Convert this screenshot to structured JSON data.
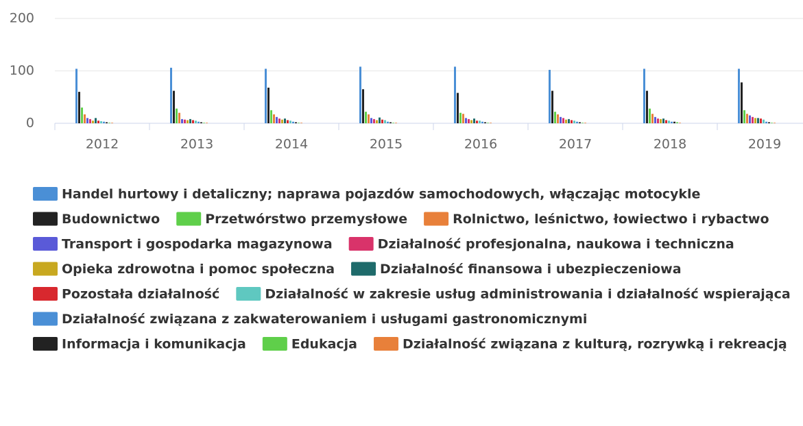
{
  "chart_data": {
    "type": "bar",
    "categories": [
      "2012",
      "2013",
      "2014",
      "2015",
      "2016",
      "2017",
      "2018",
      "2019"
    ],
    "ylim": [
      0,
      200
    ],
    "yticks": [
      0,
      100,
      200
    ],
    "grid": true,
    "legend": "bottom",
    "series": [
      {
        "name": "Handel hurtowy i detaliczny; naprawa pojazdów samochodowych, włączając motocykle",
        "color": "#4a8fd6",
        "values": [
          104,
          106,
          104,
          108,
          108,
          102,
          104,
          104
        ]
      },
      {
        "name": "Budownictwo",
        "color": "#222222",
        "values": [
          60,
          62,
          68,
          65,
          58,
          62,
          62,
          78
        ]
      },
      {
        "name": "Przetwórstwo przemysłowe",
        "color": "#5fcf4a",
        "values": [
          30,
          28,
          25,
          22,
          20,
          22,
          28,
          25
        ]
      },
      {
        "name": "Rolnictwo, leśnictwo, łowiectwo i rybactwo",
        "color": "#e8803a",
        "values": [
          17,
          20,
          17,
          17,
          18,
          17,
          18,
          18
        ]
      },
      {
        "name": "Transport i gospodarka magazynowa",
        "color": "#5a5ad8",
        "values": [
          10,
          8,
          12,
          10,
          10,
          12,
          12,
          15
        ]
      },
      {
        "name": "Działalność profesjonalna, naukowa i techniczna",
        "color": "#d9336a",
        "values": [
          8,
          7,
          9,
          8,
          8,
          10,
          9,
          12
        ]
      },
      {
        "name": "Opieka zdrowotna i pomoc społeczna",
        "color": "#c8a820",
        "values": [
          5,
          6,
          7,
          6,
          6,
          7,
          8,
          10
        ]
      },
      {
        "name": "Działalność finansowa i ubezpieczeniowa",
        "color": "#1f6b6b",
        "values": [
          10,
          8,
          9,
          11,
          9,
          8,
          9,
          10
        ]
      },
      {
        "name": "Pozostała działalność",
        "color": "#d8282e",
        "values": [
          5,
          6,
          6,
          7,
          5,
          6,
          6,
          9
        ]
      },
      {
        "name": "Działalność w zakresie usług administrowania i działalność wspierająca",
        "color": "#5fc8c0",
        "values": [
          4,
          5,
          5,
          6,
          5,
          5,
          5,
          7
        ]
      },
      {
        "name": "Działalność związana z zakwaterowaniem i usługami gastronomicznymi",
        "color": "#4a8fd6",
        "values": [
          3,
          3,
          3,
          3,
          3,
          3,
          3,
          3
        ]
      },
      {
        "name": "Informacja i komunikacja",
        "color": "#222222",
        "values": [
          2,
          2,
          2,
          2,
          2,
          2,
          3,
          2
        ]
      },
      {
        "name": "Edukacja",
        "color": "#5fcf4a",
        "values": [
          1,
          1,
          1,
          1,
          1,
          1,
          2,
          1
        ]
      },
      {
        "name": "Działalność związana z kulturą, rozrywką i rekreacją",
        "color": "#e8803a",
        "values": [
          1,
          1,
          1,
          1,
          1,
          1,
          1,
          1
        ]
      }
    ]
  }
}
